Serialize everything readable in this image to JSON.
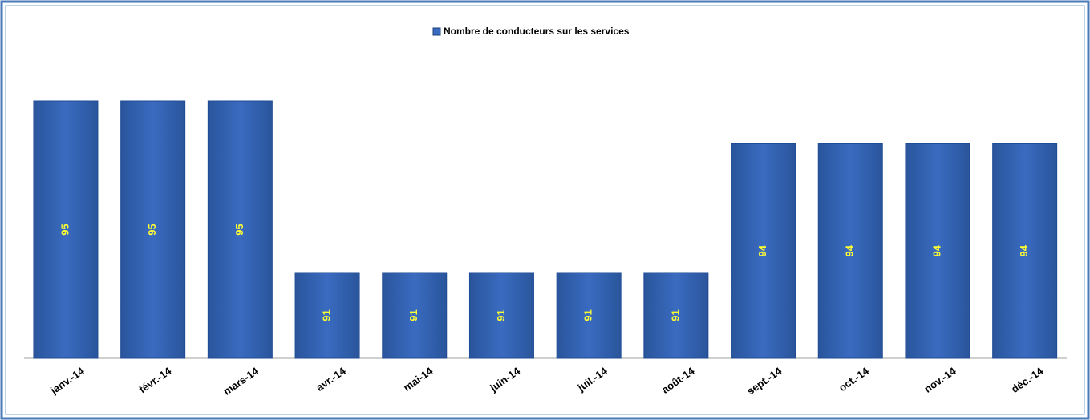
{
  "chart_data": {
    "type": "bar",
    "series": [
      {
        "name": "Nombre de conducteurs sur les services",
        "color": "#3a6bc0",
        "values": [
          95,
          95,
          95,
          91,
          91,
          91,
          91,
          91,
          94,
          94,
          94,
          94
        ]
      }
    ],
    "categories": [
      "janv.-14",
      "févr.-14",
      "mars-14",
      "avr.-14",
      "mai-14",
      "juin-14",
      "juil.-14",
      "août-14",
      "sept.-14",
      "oct.-14",
      "nov.-14",
      "déc.-14"
    ],
    "ylim": [
      89,
      96
    ],
    "label_color": "#ffff33"
  }
}
